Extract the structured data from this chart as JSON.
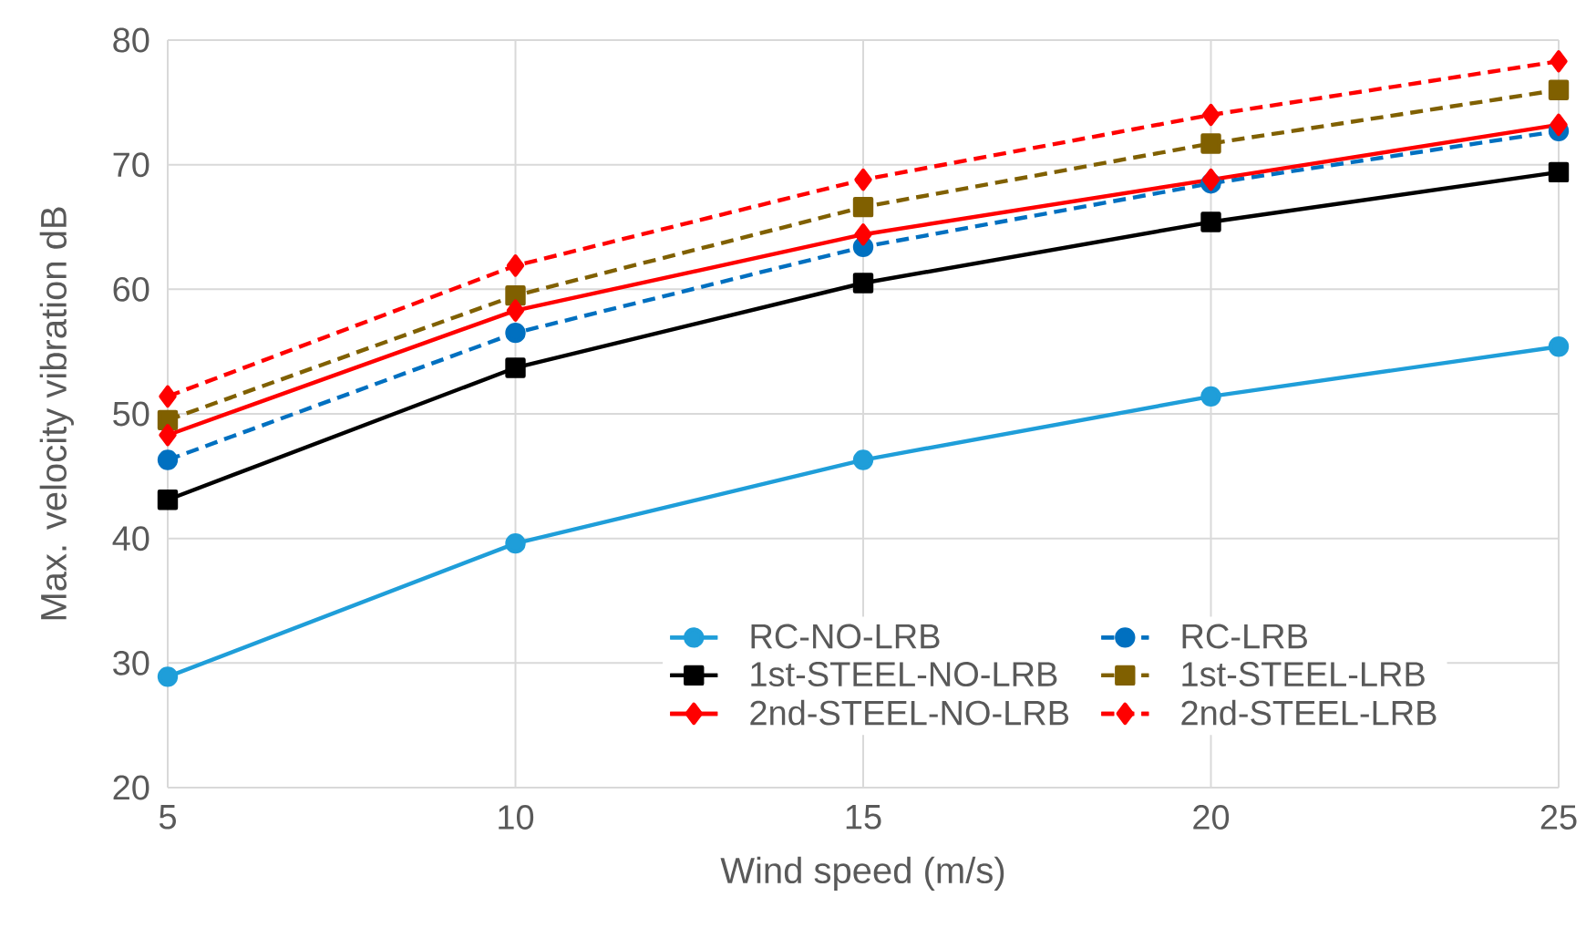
{
  "chart_data": {
    "type": "line",
    "xlabel": "Wind speed (m/s)",
    "ylabel": "Max. velocity vibration dB",
    "x": [
      5,
      10,
      15,
      20,
      25
    ],
    "series": [
      {
        "name": "RC-NO-LRB",
        "color": "#1f9ed9",
        "marker": "circle",
        "line_style": "solid",
        "values": [
          28.9,
          39.6,
          46.3,
          51.4,
          55.4
        ]
      },
      {
        "name": "RC-LRB",
        "color": "#0070c0",
        "marker": "circle",
        "line_style": "dashed",
        "values": [
          46.3,
          56.5,
          63.4,
          68.5,
          72.7
        ]
      },
      {
        "name": "1st-STEEL-NO-LRB",
        "color": "#000000",
        "marker": "square",
        "line_style": "solid",
        "values": [
          43.1,
          53.7,
          60.5,
          65.4,
          69.4
        ]
      },
      {
        "name": "1st-STEEL-LRB",
        "color": "#806000",
        "marker": "square",
        "line_style": "dashed",
        "values": [
          49.5,
          59.5,
          66.6,
          71.7,
          76.0
        ]
      },
      {
        "name": "2nd-STEEL-NO-LRB",
        "color": "#ff0000",
        "marker": "diamond",
        "line_style": "solid",
        "values": [
          48.3,
          58.3,
          64.4,
          68.8,
          73.2
        ]
      },
      {
        "name": "2nd-STEEL-LRB",
        "color": "#ff0000",
        "marker": "diamond",
        "line_style": "dashed",
        "values": [
          51.4,
          61.9,
          68.8,
          74.0,
          78.3
        ]
      }
    ],
    "xlim": [
      5,
      25
    ],
    "xticks": [
      5,
      10,
      15,
      20,
      25
    ],
    "ylim": [
      20,
      80
    ],
    "yticks": [
      20,
      30,
      40,
      50,
      60,
      70,
      80
    ],
    "grid": true,
    "legend": "bottom right"
  }
}
